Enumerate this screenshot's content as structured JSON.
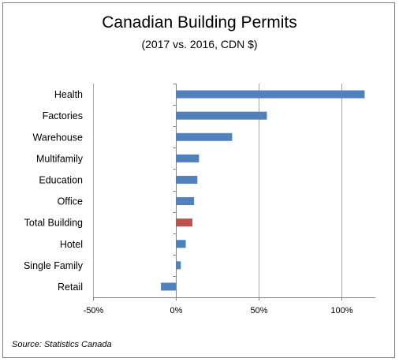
{
  "chart_data": {
    "type": "bar",
    "orientation": "horizontal",
    "title": "Canadian Building Permits",
    "subtitle": "(2017 vs. 2016, CDN $)",
    "source": "Source: Statistics Canada",
    "categories": [
      "Health",
      "Factories",
      "Warehouse",
      "Multifamily",
      "Education",
      "Office",
      "Total Building",
      "Hotel",
      "Single Family",
      "Retail"
    ],
    "values": [
      114,
      55,
      34,
      14,
      13,
      11,
      10,
      6,
      3,
      -9
    ],
    "unit": "%",
    "xlim": [
      -50,
      120
    ],
    "xticks": [
      -50,
      0,
      50,
      100
    ],
    "xtick_labels": [
      "-50%",
      "0%",
      "50%",
      "100%"
    ],
    "grid": "vertical",
    "colors": {
      "default_bar": "#4f81bd",
      "highlight_bar": "#c0504d",
      "highlight_category": "Total Building",
      "gridline": "#a6a6a6",
      "axis": "#808080"
    }
  }
}
